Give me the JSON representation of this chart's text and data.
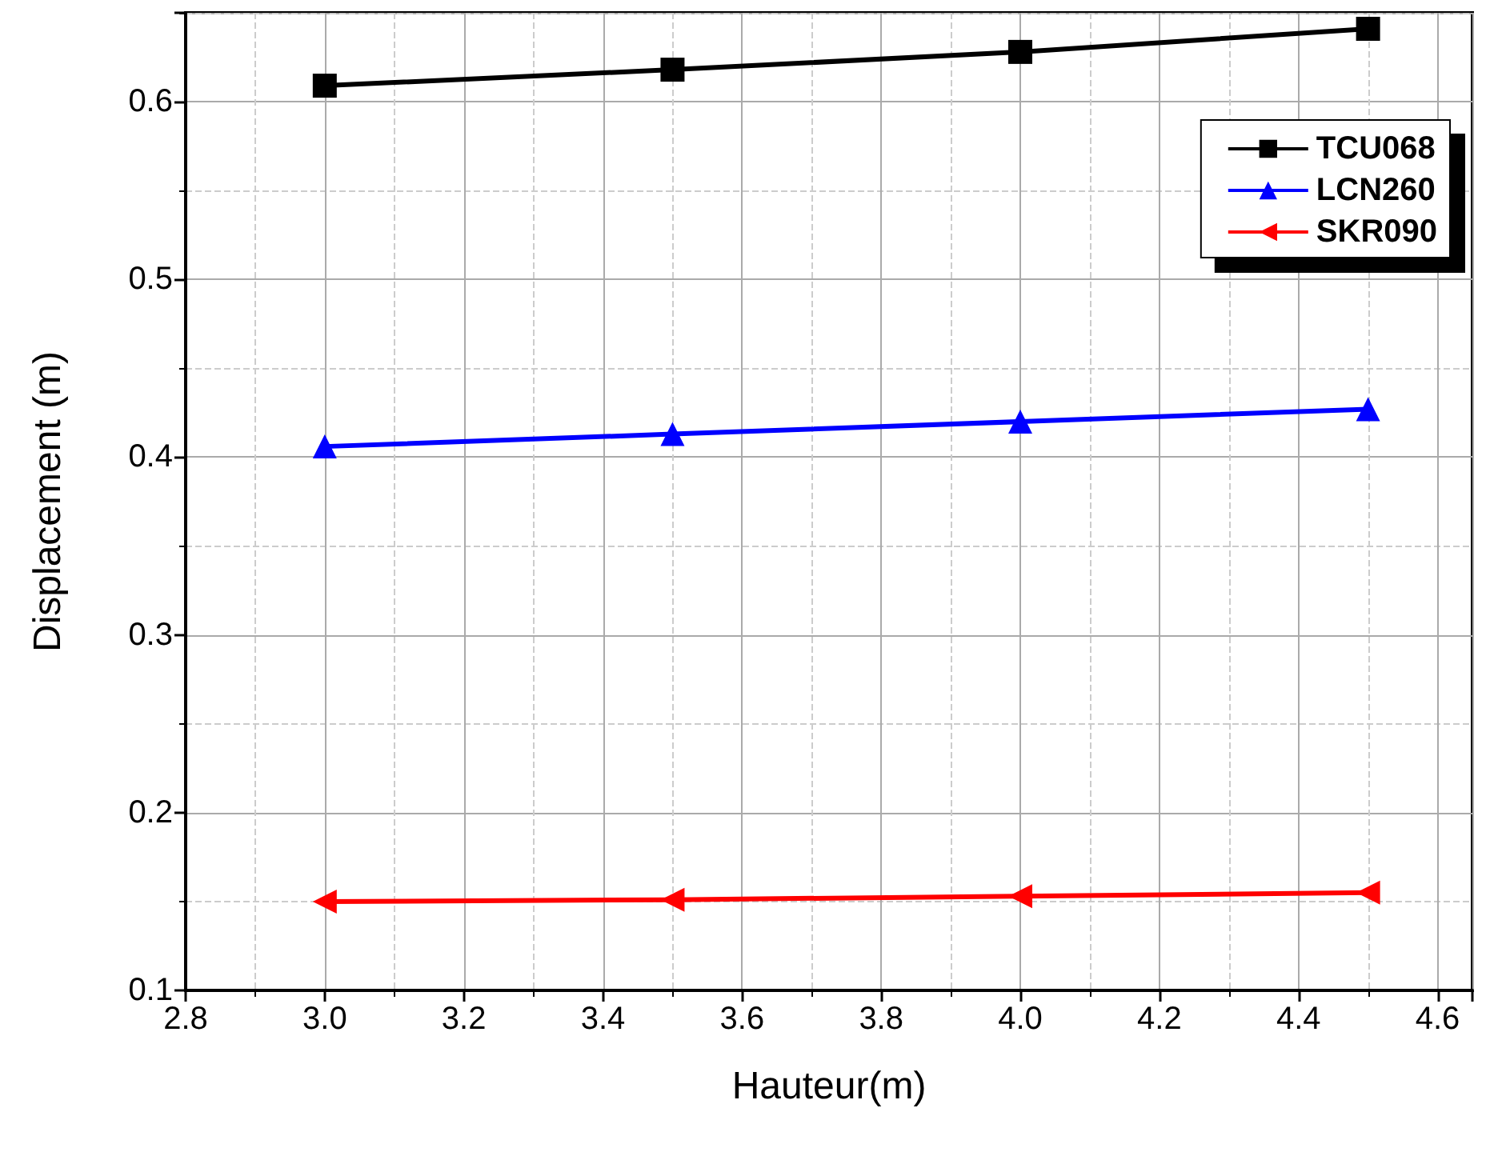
{
  "chart_data": {
    "type": "line",
    "xlabel": "Hauteur(m)",
    "ylabel": "Displacement (m)",
    "x": [
      3.0,
      3.5,
      4.0,
      4.5
    ],
    "series": [
      {
        "name": "TCU068",
        "color": "#000000",
        "marker": "square",
        "values": [
          0.609,
          0.618,
          0.628,
          0.641
        ]
      },
      {
        "name": "LCN260",
        "color": "#0000ff",
        "marker": "triangle",
        "values": [
          0.406,
          0.413,
          0.42,
          0.427
        ]
      },
      {
        "name": "SKR090",
        "color": "#ff0000",
        "marker": "triangle-left",
        "values": [
          0.15,
          0.151,
          0.153,
          0.155
        ]
      }
    ],
    "xlim": [
      2.8,
      4.65
    ],
    "xticks": [
      2.8,
      {
        "value": 3,
        "label": "3.0"
      },
      3.2,
      3.4,
      3.6,
      3.8,
      {
        "value": 4,
        "label": "4.0"
      },
      4.2,
      4.4,
      4.6
    ],
    "ylim": [
      0.1,
      0.65
    ],
    "yticks": [
      0.1,
      0.2,
      0.3,
      0.4,
      0.5,
      0.6
    ],
    "grid": true,
    "legend": "top right",
    "line_style": "solid"
  }
}
